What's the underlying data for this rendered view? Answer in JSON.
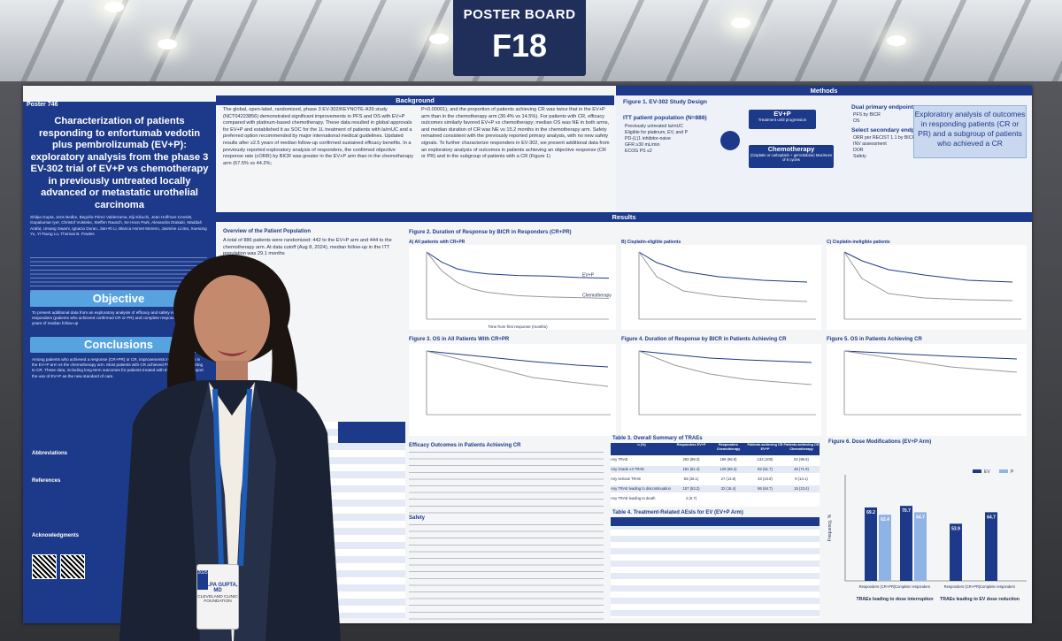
{
  "sign": {
    "line1": "POSTER BOARD",
    "line2": "F18"
  },
  "poster": {
    "number": "Poster 746",
    "title": "Characterization of patients responding to enfortumab vedotin plus pembrolizumab (EV+P): exploratory analysis from the phase 3 EV-302 trial of EV+P vs chemotherapy in previously untreated locally advanced or metastatic urothelial carcinoma",
    "authors": "Shilpa Gupta, Jens Bedke, Begoña Pérez Valderrama, Eiji Kikuchi, Jean Hoffman-Censits, Gopakumar Iyer, Christof Vulsteke, Steffen Rausch, Se Hoon Park, Alexandra Drakaki, Waddah Arafat, Umang Swami, Ignacio Duran, Jian-Ri Li, Blanca Homet Moreno, Jasmine Licitra, Xuesong Yu, Yi-Tsung Lu, Thomas B. Powles",
    "objective_label": "Objective",
    "objective_text": "To present additional data from an exploratory analysis of efficacy and safety results for responders (patients who achieved confirmed CR or PR) and complete responders with ≥2.5 years of median follow-up",
    "conclusions_label": "Conclusions",
    "conclusions_text": "Among patients who achieved a response (CR+PR) or CR, improvements in OS were seen in the EV+P arm vs the chemotherapy arm. Most patients with CR achieved PR before converting to CR. These data, including long-term outcomes for patients treated with EV+P, further support the use of EV+P as the new standard of care.",
    "abbreviations_label": "Abbreviations",
    "references_label": "References",
    "acknowledgments_label": "Acknowledgments",
    "background_label": "Background",
    "background_text": "The global, open-label, randomized, phase 3 EV-302/KEYNOTE-A39 study (NCT04223856) demonstrated significant improvements in PFS and OS with EV+P compared with platinum-based chemotherapy. These data resulted in global approvals for EV+P and established it as SOC for the 1L treatment of patients with la/mUC and a preferred option recommended by major international medical guidelines. Updated results after ≥2.5 years of median follow-up confirmed sustained efficacy benefits. In a previously reported exploratory analysis of responders, the confirmed objective response rate (cORR) by BICR was greater in the EV+P arm than in the chemotherapy arm (67.5% vs 44.2%;",
    "background_text2": "P<0.00001), and the proportion of patients achieving CR was twice that in the EV+P arm than in the chemotherapy arm (30.4% vs 14.5%). For patients with CR, efficacy outcomes similarly favored EV+P vs chemotherapy; median OS was NE in both arms, and median duration of CR was NE vs 15.2 months in the chemotherapy arm. Safety remained consistent with the previously reported primary analysis, with no new safety signals. To further characterize responders in EV-302, we present additional data from an exploratory analysis of outcomes in patients achieving an objective response (CR or PR) and in the subgroup of patients with a CR (Figure 1)",
    "methods_label": "Methods",
    "figure1_title": "Figure 1. EV-302 Study Design",
    "itt_label": "ITT patient population (N=886)",
    "itt_items": [
      "Previously untreated la/mUC",
      "Eligible for platinum, EV, and P",
      "PD-(L)1 inhibitor-naive",
      "GFR ≥30 mL/min",
      "ECOG PS ≤2"
    ],
    "arm1_label": "EV+P",
    "arm1_sub": "Treatment until progression",
    "arm2_label": "Chemotherapy",
    "arm2_sub": "(Cisplatin or carboplatin + gemcitabine) Maximum of 6 cycles",
    "endpoints_primary_label": "Dual primary endpoints",
    "endpoints_primary": [
      "PFS by BICR",
      "OS"
    ],
    "endpoints_secondary_label": "Select secondary endpoints",
    "endpoints_secondary": [
      "ORR per RECIST 1.1 by BICR and INV assessment",
      "DOR",
      "Safety"
    ],
    "explore_text": "Exploratory analysis of outcomes in responding patients (CR or PR) and a subgroup of patients who achieved a CR",
    "results_label": "Results",
    "overview_title": "Overview of the Patient Population",
    "overview_text": "A total of 886 patients were randomized: 442 to the EV+P arm and 444 to the chemotherapy arm. At data cutoff (Aug 8, 2024), median follow-up in the ITT population was 29.1 months",
    "fig2_title": "Figure 2. Duration of Response by BICR in Responders (CR+PR)",
    "fig2a_label": "A) All patients with CR+PR",
    "fig2b_label": "B) Cisplatin-eligible patients",
    "fig2c_label": "C) Cisplatin-ineligible patients",
    "fig3_title": "Figure 3. OS in All Patients With CR+PR",
    "fig4_title": "Figure 4. Duration of Response by BICR in Patients Achieving CR",
    "fig5_title": "Figure 5. OS in Patients Achieving CR",
    "efficacy_title": "Efficacy Outcomes in Patients Achieving CR",
    "safety_label": "Safety",
    "table3_title": "Table 3. Overall Summary of TRAEs",
    "table4_title": "Table 4. Treatment-Related AEsIs for EV (EV+P Arm)",
    "fig6_title": "Figure 6. Dose Modifications (EV+P Arm)"
  },
  "badge": {
    "year": "2025",
    "name": "SHILPA GUPTA, MD",
    "org": "CLEVELAND CLINIC FOUNDATION"
  },
  "table3": {
    "headers": [
      "n (%)",
      "Responders EV+P",
      "Responders Chemotherapy",
      "Patients achieving CR EV+P",
      "Patients achieving CR Chemotherapy"
    ],
    "rows": [
      [
        "Any TRAE",
        "293 (99.3)",
        "189 (96.9)",
        "133 (100)",
        "62 (96.9)"
      ],
      [
        "Any Grade ≥3 TRAE",
        "181 (61.4)",
        "129 (66.2)",
        "82 (61.7)",
        "46 (71.9)"
      ],
      [
        "Any serious TRAE",
        "83 (28.1)",
        "27 (13.8)",
        "33 (24.8)",
        "9 (14.1)"
      ],
      [
        "Any TRAE leading to discontinuation",
        "157 (53.2)",
        "32 (16.4)",
        "86 (64.7)",
        "15 (23.4)"
      ],
      [
        "Any TRAE leading to death",
        "2 (0.7)",
        "",
        "",
        ""
      ]
    ]
  },
  "chart_data": [
    {
      "type": "bar",
      "title": "Figure 6. Dose Modifications (EV+P Arm)",
      "categories": [
        "Responders (CR+PR)",
        "Complete responders",
        "Responders (CR+PR)",
        "Complete responders"
      ],
      "groups": [
        "TRAEs leading to dose interruption",
        "TRAEs leading to EV dose reduction"
      ],
      "series": [
        {
          "name": "EV",
          "values": [
            69.2,
            70.7,
            53.9,
            64.7
          ]
        },
        {
          "name": "P",
          "values": [
            62.4,
            64.7,
            null,
            null
          ]
        }
      ],
      "ylabel": "Frequency, %",
      "ylim": [
        0,
        100
      ],
      "legend": "top-right",
      "colors": {
        "EV": "#1d3a8a",
        "P": "#8fb3e4"
      }
    },
    {
      "type": "line",
      "title": "A) All patients with CR+PR",
      "x": [
        0,
        3,
        6,
        9,
        12,
        18,
        24,
        30,
        36
      ],
      "series": [
        {
          "name": "EV+P",
          "values": [
            100,
            85,
            75,
            70,
            67.5,
            65,
            64.1,
            62,
            61
          ]
        },
        {
          "name": "Chemotherapy",
          "values": [
            100,
            72,
            55,
            45,
            40,
            35,
            33,
            32,
            31
          ]
        }
      ],
      "xlabel": "Time from first response (months)",
      "ylim": [
        0,
        100
      ]
    }
  ]
}
